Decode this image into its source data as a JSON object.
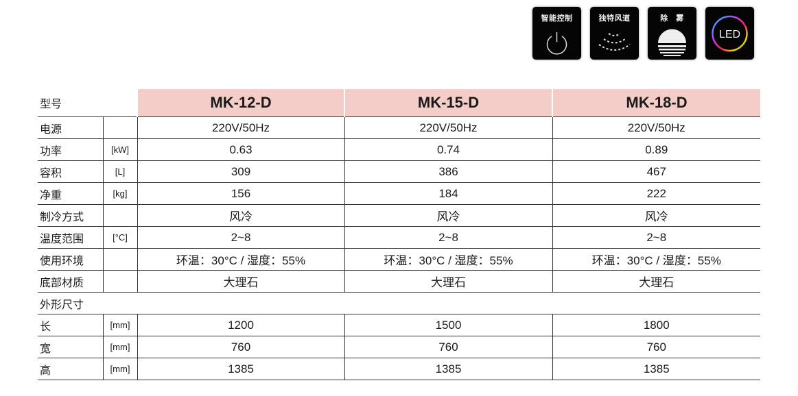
{
  "features": [
    {
      "label": "智能控制",
      "icon": "power-icon"
    },
    {
      "label": "独特风道",
      "icon": "airflow-icon"
    },
    {
      "label": "除　雾",
      "icon": "defog-icon"
    },
    {
      "label": "LED",
      "icon": "led-ring-icon"
    }
  ],
  "table": {
    "header": {
      "label": "型号",
      "models": [
        "MK-12-D",
        "MK-15-D",
        "MK-18-D"
      ]
    },
    "rows": [
      {
        "label": "电源",
        "unit": "",
        "values": [
          "220V/50Hz",
          "220V/50Hz",
          "220V/50Hz"
        ]
      },
      {
        "label": "功率",
        "unit": "[kW]",
        "values": [
          "0.63",
          "0.74",
          "0.89"
        ]
      },
      {
        "label": "容积",
        "unit": "[L]",
        "values": [
          "309",
          "386",
          "467"
        ]
      },
      {
        "label": "净重",
        "unit": "[kg]",
        "values": [
          "156",
          "184",
          "222"
        ]
      },
      {
        "label": "制冷方式",
        "unit": "",
        "values": [
          "风冷",
          "风冷",
          "风冷"
        ]
      },
      {
        "label": "温度范围",
        "unit": "[°C]",
        "values": [
          "2~8",
          "2~8",
          "2~8"
        ]
      },
      {
        "label": "使用环境",
        "unit": "",
        "values": [
          "环温：30°C / 湿度：55%",
          "环温：30°C / 湿度：55%",
          "环温：30°C / 湿度：55%"
        ]
      },
      {
        "label": "底部材质",
        "unit": "",
        "values": [
          "大理石",
          "大理石",
          "大理石"
        ]
      }
    ],
    "section": "外形尺寸",
    "dim_rows": [
      {
        "label": "长",
        "unit": "[mm]",
        "values": [
          "1200",
          "1500",
          "1800"
        ]
      },
      {
        "label": "宽",
        "unit": "[mm]",
        "values": [
          "760",
          "760",
          "760"
        ]
      },
      {
        "label": "高",
        "unit": "[mm]",
        "values": [
          "1385",
          "1385",
          "1385"
        ]
      }
    ]
  }
}
